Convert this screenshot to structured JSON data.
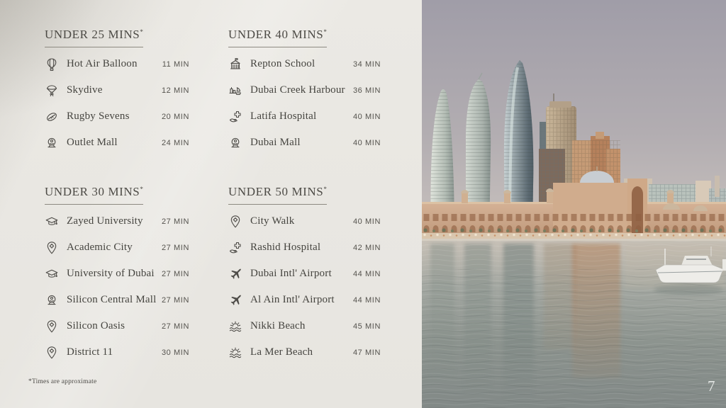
{
  "page_number": "7",
  "footnote": "*Times are approximate",
  "colors": {
    "panel_bg": "#eae8e3",
    "heading_text": "#4c4a45",
    "label_text": "#45443f",
    "time_text": "#55534e",
    "underline": "#8d8a81",
    "page_number_text": "#eef0ee"
  },
  "sections": [
    {
      "title": "UNDER 25 MINS",
      "title_suffix": "*",
      "items": [
        {
          "icon": "hot-air-balloon-icon",
          "label": "Hot Air Balloon",
          "time": "11 MIN"
        },
        {
          "icon": "skydive-icon",
          "label": "Skydive",
          "time": "12 MIN"
        },
        {
          "icon": "rugby-ball-icon",
          "label": "Rugby Sevens",
          "time": "20 MIN"
        },
        {
          "icon": "mall-icon",
          "label": "Outlet Mall",
          "time": "24 MIN"
        }
      ]
    },
    {
      "title": "UNDER 40 MINS",
      "title_suffix": "*",
      "items": [
        {
          "icon": "school-icon",
          "label": "Repton School",
          "time": "34 MIN"
        },
        {
          "icon": "harbour-icon",
          "label": "Dubai Creek Harbour",
          "time": "36 MIN"
        },
        {
          "icon": "hospital-icon",
          "label": "Latifa Hospital",
          "time": "40 MIN"
        },
        {
          "icon": "mall-icon",
          "label": "Dubai Mall",
          "time": "40 MIN"
        }
      ]
    },
    {
      "title": "UNDER 30 MINS",
      "title_suffix": "*",
      "items": [
        {
          "icon": "graduation-cap-icon",
          "label": "Zayed University",
          "time": "27 MIN"
        },
        {
          "icon": "location-pin-icon",
          "label": "Academic City",
          "time": "27 MIN"
        },
        {
          "icon": "graduation-cap-icon",
          "label": "University of Dubai",
          "time": "27 MIN"
        },
        {
          "icon": "mall-icon",
          "label": "Silicon Central Mall",
          "time": "27 MIN"
        },
        {
          "icon": "location-pin-icon",
          "label": "Silicon Oasis",
          "time": "27 MIN"
        },
        {
          "icon": "location-pin-icon",
          "label": "District 11",
          "time": "30 MIN"
        }
      ]
    },
    {
      "title": "UNDER 50 MINS",
      "title_suffix": "*",
      "items": [
        {
          "icon": "location-pin-icon",
          "label": "City Walk",
          "time": "40 MIN"
        },
        {
          "icon": "hospital-icon",
          "label": "Rashid Hospital",
          "time": "42 MIN"
        },
        {
          "icon": "airplane-icon",
          "label": "Dubai Intl' Airport",
          "time": "44 MIN"
        },
        {
          "icon": "airplane-icon",
          "label": "Al Ain Intl' Airport",
          "time": "44 MIN"
        },
        {
          "icon": "beach-icon",
          "label": "Nikki Beach",
          "time": "45 MIN"
        },
        {
          "icon": "beach-icon",
          "label": "La Mer Beach",
          "time": "47 MIN"
        }
      ]
    }
  ]
}
